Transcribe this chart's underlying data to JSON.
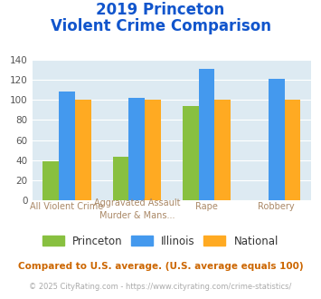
{
  "title_line1": "2019 Princeton",
  "title_line2": "Violent Crime Comparison",
  "series": {
    "Princeton": [
      39,
      43,
      94,
      0
    ],
    "Illinois": [
      108,
      102,
      131,
      121
    ],
    "National": [
      100,
      100,
      100,
      100
    ]
  },
  "colors": {
    "Princeton": "#88c040",
    "Illinois": "#4499ee",
    "National": "#ffaa22"
  },
  "ylim": [
    0,
    140
  ],
  "yticks": [
    0,
    20,
    40,
    60,
    80,
    100,
    120,
    140
  ],
  "bg_color": "#ddeaf2",
  "title_color": "#1155cc",
  "label_color": "#aa8866",
  "footnote1": "Compared to U.S. average. (U.S. average equals 100)",
  "footnote2": "© 2025 CityRating.com - https://www.cityrating.com/crime-statistics/",
  "footnote1_color": "#cc6600",
  "footnote2_color": "#aaaaaa",
  "legend_label_color": "#333333"
}
